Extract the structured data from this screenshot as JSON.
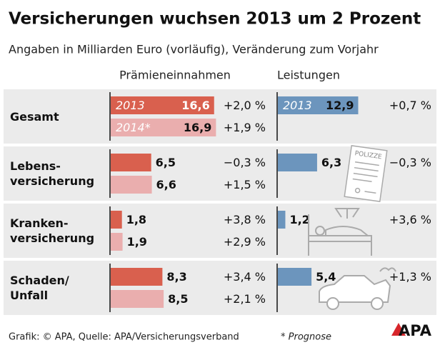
{
  "chart_data": {
    "type": "bar",
    "title": "Versicherungen wuchsen 2013 um 2 Prozent",
    "subtitle": "Angaben in Milliarden Euro (vorläufig), Veränderung zum Vorjahr",
    "panels": [
      "Prämieneinnahmen",
      "Leistungen"
    ],
    "categories": [
      "Gesamt",
      "Lebens-\nversicherung",
      "Kranken-\nversicherung",
      "Schaden/\nUnfall"
    ],
    "series": [
      {
        "name": "2013",
        "panel": 0,
        "color": "#d9604e",
        "values": [
          16.6,
          6.5,
          1.8,
          8.3
        ],
        "value_labels": [
          "16,6",
          "6,5",
          "1,8",
          "8,3"
        ],
        "changes": [
          "+2,0 %",
          "−0,3 %",
          "+3,8 %",
          "+3,4 %"
        ]
      },
      {
        "name": "2014*",
        "panel": 0,
        "color": "#eaaeae",
        "values": [
          16.9,
          6.6,
          1.9,
          8.5
        ],
        "value_labels": [
          "16,9",
          "6,6",
          "1,9",
          "8,5"
        ],
        "changes": [
          "+1,9 %",
          "+1,5 %",
          "+2,9 %",
          "+2,1 %"
        ]
      },
      {
        "name": "2013",
        "panel": 1,
        "color": "#6c95bd",
        "values": [
          12.9,
          6.3,
          1.2,
          5.4
        ],
        "value_labels": [
          "12,9",
          "6,3",
          "1,2",
          "5,4"
        ],
        "changes": [
          "+0,7 %",
          "−0,3 %",
          "+3,6 %",
          "+1,3 %"
        ]
      }
    ],
    "icon_label": "POLIZZE",
    "source": "Grafik: © APA, Quelle: APA/Versicherungsverband",
    "note": "* Prognose",
    "logo": "APA"
  }
}
